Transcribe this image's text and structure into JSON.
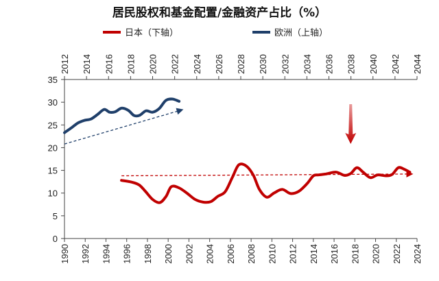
{
  "chart_data": {
    "type": "line",
    "title": "居民股权和基金配置/金融资产占比（%）",
    "y_axis": {
      "ylim": [
        0,
        35
      ],
      "ticks": [
        0,
        5,
        10,
        15,
        20,
        25,
        30,
        35
      ]
    },
    "x_axis_bottom": {
      "range": [
        1990,
        2024
      ],
      "ticks": [
        "1990",
        "1992",
        "1994",
        "1996",
        "1998",
        "2000",
        "2002",
        "2004",
        "2006",
        "2008",
        "2010",
        "2012",
        "2014",
        "2016",
        "2018",
        "2020",
        "2022",
        "2024"
      ]
    },
    "x_axis_top": {
      "range": [
        2012,
        2044
      ],
      "ticks": [
        "2012",
        "2014",
        "2016",
        "2018",
        "2020",
        "2022",
        "2024",
        "2026",
        "2028",
        "2030",
        "2032",
        "2034",
        "2036",
        "2038",
        "2040",
        "2042",
        "2044"
      ]
    },
    "legend": {
      "placement": "top"
    },
    "series": [
      {
        "name": "日本（下轴）",
        "axis": "bottom",
        "color": "#c00000",
        "x": [
          1995.5,
          1996.5,
          1997.2,
          1997.8,
          1998.5,
          1999.2,
          1999.8,
          2000.3,
          2001.0,
          2001.8,
          2002.6,
          2003.4,
          2004.1,
          2004.8,
          2005.5,
          2006.2,
          2006.8,
          2007.5,
          2008.2,
          2008.8,
          2009.5,
          2010.2,
          2011.0,
          2011.8,
          2012.6,
          2013.4,
          2014.0,
          2014.5,
          2015.2,
          2016.2,
          2017.0,
          2017.6,
          2018.2,
          2018.8,
          2019.5,
          2020.2,
          2021.0,
          2021.6,
          2022.2,
          2022.8,
          2023.3
        ],
        "y": [
          12.8,
          12.4,
          11.8,
          10.4,
          8.6,
          7.9,
          9.3,
          11.4,
          11.2,
          10.0,
          8.6,
          8.0,
          8.1,
          9.3,
          10.3,
          13.5,
          16.2,
          16.0,
          14.0,
          10.8,
          9.1,
          10.0,
          10.8,
          9.9,
          10.4,
          12.1,
          13.8,
          14.0,
          14.2,
          14.6,
          13.9,
          14.3,
          15.6,
          14.6,
          13.4,
          14.0,
          13.8,
          14.1,
          15.6,
          15.2,
          14.6
        ]
      },
      {
        "name": "欧洲（上轴）",
        "axis": "top",
        "color": "#1f3f6a",
        "x": [
          2012.0,
          2012.6,
          2013.2,
          2013.8,
          2014.4,
          2015.0,
          2015.6,
          2016.1,
          2016.6,
          2017.2,
          2017.8,
          2018.3,
          2018.8,
          2019.4,
          2020.0,
          2020.6,
          2021.2,
          2021.8,
          2022.4
        ],
        "y": [
          23.3,
          24.3,
          25.4,
          26.0,
          26.3,
          27.3,
          28.4,
          27.8,
          27.9,
          28.7,
          28.2,
          27.1,
          27.1,
          28.1,
          27.8,
          28.6,
          30.4,
          30.7,
          30.2
        ]
      }
    ],
    "annotations": [
      {
        "name": "japan-trend",
        "type": "dashed-arrow",
        "axis": "bottom",
        "color": "#c00000",
        "from": [
          1995.5,
          13.8
        ],
        "to": [
          2023.3,
          14.2
        ]
      },
      {
        "name": "europe-trend",
        "type": "dashed-arrow",
        "axis": "top",
        "color": "#1f3f6a",
        "from": [
          2012.0,
          20.8
        ],
        "to": [
          2022.5,
          28.2
        ]
      }
    ]
  }
}
